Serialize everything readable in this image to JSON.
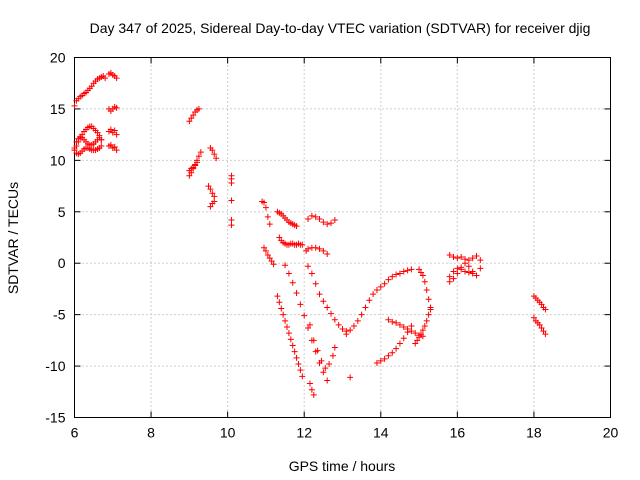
{
  "chart_data": {
    "type": "scatter",
    "title": "Day 347 of 2025, Sidereal Day-to-day VTEC variation (SDTVAR) for receiver djig",
    "xlabel": "GPS time / hours",
    "ylabel": "SDTVAR / TECUs",
    "xlim": [
      6,
      20
    ],
    "ylim": [
      -15,
      20
    ],
    "xticks": [
      "6",
      "8",
      "10",
      "12",
      "14",
      "16",
      "18",
      "20"
    ],
    "yticks": [
      "20",
      "15",
      "10",
      "5",
      "0",
      "-5",
      "-10",
      "-15"
    ],
    "grid": true,
    "marker": "+",
    "color": "#ff0000",
    "series": [
      {
        "x": [
          6.0,
          6.05,
          6.1,
          6.15,
          6.2,
          6.25,
          6.3,
          6.35,
          6.4,
          6.45,
          6.5,
          6.55,
          6.6,
          6.65,
          6.7,
          6.75,
          6.8,
          6.0,
          6.05,
          6.1,
          6.15,
          6.2,
          6.25,
          6.3,
          6.35,
          6.4,
          6.45,
          6.5,
          6.55,
          6.6,
          6.65,
          6.7,
          6.0,
          6.05,
          6.1,
          6.15,
          6.2,
          6.25,
          6.3,
          6.35,
          6.4,
          6.45,
          6.5,
          6.55,
          6.6,
          6.65,
          6.7,
          6.0,
          6.05,
          6.1,
          6.15,
          6.2,
          6.25,
          6.3,
          6.35,
          6.4,
          6.45,
          6.5,
          6.55,
          6.6,
          6.65,
          6.7,
          6.9,
          6.95,
          7.0,
          7.05,
          7.1,
          6.9,
          6.95,
          7.0,
          7.05,
          7.1,
          6.9,
          6.95,
          7.0,
          7.05,
          7.1,
          6.9,
          6.95,
          7.0,
          7.05,
          7.1,
          9.0,
          9.05,
          9.1,
          9.15,
          9.2,
          9.25,
          9.0,
          9.05,
          9.1,
          9.15,
          9.2,
          9.25,
          9.3,
          9.0,
          9.05,
          9.1,
          9.15,
          9.2,
          9.55,
          9.6,
          9.65,
          9.7,
          9.5,
          9.55,
          9.6,
          9.65,
          9.55,
          9.6,
          9.65,
          10.1,
          10.1,
          10.1,
          10.1,
          10.1,
          10.1,
          10.9,
          10.95,
          11.0,
          11.05,
          11.1,
          10.95,
          11.0,
          11.05,
          11.1,
          11.15,
          11.2,
          11.3,
          11.35,
          11.4,
          11.45,
          11.5,
          11.55,
          11.6,
          11.65,
          11.7,
          11.75,
          11.8,
          11.3,
          11.35,
          11.4,
          11.45,
          11.5,
          11.55,
          11.6,
          11.65,
          11.7,
          11.75,
          11.8,
          11.85,
          11.9,
          11.95,
          11.35,
          11.4,
          11.45,
          11.5,
          11.55,
          11.6,
          11.65,
          11.7,
          11.75,
          11.8,
          11.85,
          11.9,
          11.95,
          11.5,
          11.6,
          11.7,
          11.8,
          11.9,
          12.0,
          12.1,
          12.2,
          12.3,
          12.4,
          12.5,
          12.6,
          12.05,
          12.1,
          12.2,
          12.3,
          12.4,
          12.5,
          12.6,
          12.15,
          12.25,
          12.35,
          12.45,
          12.55,
          12.65,
          12.75,
          12.8,
          12.1,
          12.2,
          12.3,
          12.4,
          12.5,
          12.6,
          12.7,
          12.8,
          12.9,
          13.0,
          13.1,
          12.1,
          12.2,
          12.3,
          12.4,
          12.5,
          12.6,
          12.7,
          12.8,
          12.15,
          12.2,
          12.25,
          13.2,
          13.1,
          13.2,
          13.3,
          13.4,
          13.5,
          13.6,
          13.7,
          13.8,
          13.9,
          14.0,
          14.1,
          14.2,
          14.3,
          14.4,
          14.5,
          14.6,
          14.7,
          14.8,
          13.9,
          14.0,
          14.1,
          14.2,
          14.3,
          14.4,
          14.5,
          14.6,
          14.7,
          14.8,
          14.2,
          14.3,
          14.4,
          14.5,
          14.6,
          14.7,
          14.8,
          14.9,
          15.0,
          15.1,
          15.0,
          15.05,
          15.1,
          15.15,
          15.2,
          15.25,
          15.3,
          15.3,
          15.25,
          15.2,
          15.15,
          15.1,
          15.05,
          15.0,
          14.95,
          14.9,
          15.8,
          15.9,
          16.0,
          16.1,
          16.2,
          16.3,
          16.4,
          16.5,
          16.6,
          15.8,
          15.9,
          16.0,
          16.1,
          16.2,
          16.3,
          16.4,
          16.5,
          16.6,
          15.8,
          15.9,
          16.0,
          16.1,
          16.2,
          16.3,
          16.4,
          18.0,
          18.05,
          18.1,
          18.15,
          18.2,
          18.25,
          18.3,
          18.0,
          18.05,
          18.1,
          18.15,
          18.2,
          18.25,
          18.3
        ],
        "y": [
          15.3,
          15.8,
          16.0,
          16.2,
          16.3,
          16.5,
          16.6,
          16.8,
          17.0,
          17.2,
          17.5,
          17.7,
          17.9,
          18.0,
          18.1,
          18.2,
          18.0,
          11.0,
          11.4,
          11.8,
          12.2,
          12.5,
          12.8,
          13.0,
          13.2,
          13.3,
          13.3,
          13.1,
          12.9,
          12.7,
          12.4,
          12.0,
          11.2,
          11.8,
          12.1,
          12.3,
          12.2,
          12.0,
          11.8,
          11.6,
          11.5,
          11.5,
          11.6,
          11.8,
          12.0,
          12.2,
          12.0,
          11.0,
          10.7,
          10.6,
          10.7,
          10.9,
          11.1,
          11.2,
          11.2,
          11.1,
          11.0,
          11.0,
          11.0,
          11.1,
          11.2,
          11.4,
          18.4,
          18.5,
          18.3,
          18.2,
          18.0,
          15.0,
          14.8,
          15.0,
          15.2,
          15.1,
          12.8,
          13.0,
          12.7,
          12.9,
          12.5,
          11.4,
          11.5,
          11.2,
          11.3,
          11.0,
          13.8,
          14.1,
          14.4,
          14.7,
          14.9,
          15.0,
          8.5,
          8.8,
          9.2,
          9.6,
          10.0,
          10.4,
          10.8,
          9.0,
          9.2,
          9.3,
          9.5,
          9.8,
          11.2,
          11.0,
          10.6,
          10.2,
          7.5,
          7.2,
          6.8,
          6.5,
          5.5,
          5.8,
          6.0,
          8.5,
          8.2,
          7.8,
          6.1,
          4.2,
          3.7,
          6.0,
          5.9,
          5.4,
          4.5,
          3.8,
          1.5,
          1.2,
          0.8,
          0.5,
          0.2,
          -0.1,
          5.0,
          4.9,
          4.8,
          4.6,
          4.4,
          4.2,
          4.0,
          3.9,
          3.8,
          3.7,
          3.6,
          -3.2,
          -3.8,
          -4.4,
          -5.0,
          -5.6,
          -6.2,
          -6.8,
          -7.4,
          -8.0,
          -8.6,
          -9.2,
          -9.8,
          -10.4,
          -11.0,
          2.5,
          2.2,
          2.0,
          1.9,
          1.8,
          1.8,
          1.9,
          1.9,
          1.8,
          1.8,
          1.9,
          1.8,
          1.8,
          -0.2,
          -1.0,
          -1.9,
          -2.9,
          -4.0,
          -5.1,
          -6.3,
          -7.5,
          -8.6,
          -9.7,
          -10.6,
          -11.4,
          1.2,
          1.4,
          1.5,
          1.5,
          1.4,
          1.2,
          0.9,
          -6.0,
          -7.5,
          -8.5,
          -9.5,
          -10.2,
          -9.8,
          -9.0,
          -8.2,
          -0.3,
          -1.0,
          -2.0,
          -3.0,
          -3.7,
          -4.3,
          -4.9,
          -5.5,
          -6.0,
          -6.4,
          -6.6,
          4.3,
          4.6,
          4.5,
          4.3,
          4.0,
          3.8,
          3.9,
          4.2,
          -11.7,
          -12.3,
          -12.8,
          -11.1,
          -6.9,
          -6.5,
          -6.1,
          -5.6,
          -5.0,
          -4.3,
          -3.6,
          -3.0,
          -2.6,
          -2.3,
          -2.0,
          -1.6,
          -1.3,
          -1.1,
          -1.0,
          -0.8,
          -0.7,
          -0.6,
          -9.7,
          -9.5,
          -9.3,
          -9.0,
          -8.7,
          -8.3,
          -7.8,
          -7.3,
          -6.7,
          -6.1,
          -5.5,
          -5.7,
          -5.8,
          -6.0,
          -6.2,
          -6.4,
          -6.6,
          -6.8,
          -7.0,
          -7.1,
          -0.6,
          -0.9,
          -1.2,
          -1.8,
          -2.6,
          -3.5,
          -4.3,
          -4.5,
          -5.0,
          -5.6,
          -6.1,
          -6.5,
          -6.9,
          -7.2,
          -7.5,
          -7.8,
          0.8,
          0.6,
          0.5,
          0.6,
          0.4,
          0.3,
          0.5,
          0.7,
          0.3,
          -1.3,
          -0.8,
          -0.5,
          -0.6,
          -0.8,
          -0.9,
          -1.0,
          -1.2,
          -0.5,
          -1.8,
          -1.5,
          -1.0,
          -0.4,
          0.0,
          -0.3,
          -0.8,
          -3.2,
          -3.4,
          -3.6,
          -3.8,
          -4.0,
          -4.3,
          -4.5,
          -5.3,
          -5.6,
          -5.8,
          -6.0,
          -6.3,
          -6.6,
          -6.9
        ]
      }
    ]
  }
}
